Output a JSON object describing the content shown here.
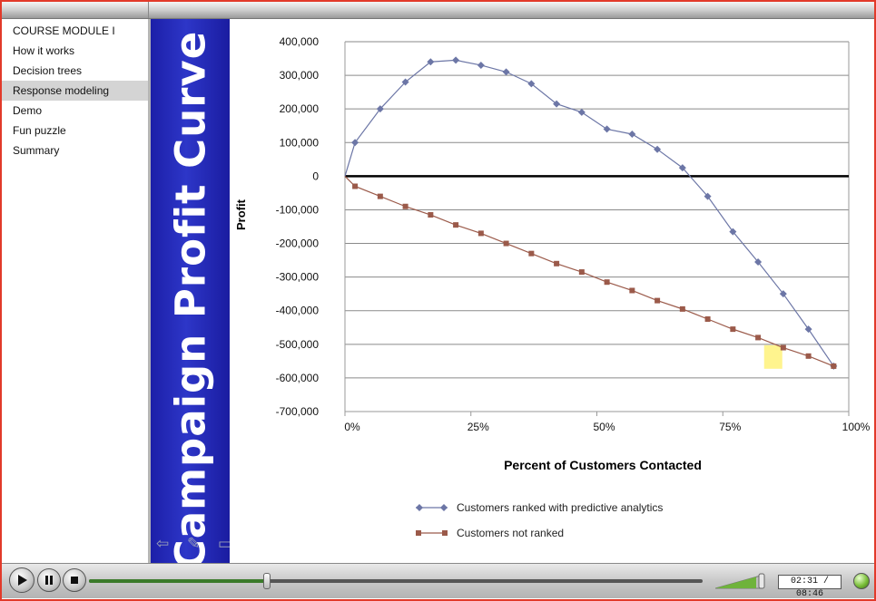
{
  "sidebar": {
    "items": [
      {
        "label": "COURSE MODULE I",
        "active": false
      },
      {
        "label": "How it works",
        "active": false
      },
      {
        "label": "Decision trees",
        "active": false
      },
      {
        "label": "Response modeling",
        "active": true
      },
      {
        "label": "Demo",
        "active": false
      },
      {
        "label": "Fun puzzle",
        "active": false
      },
      {
        "label": "Summary",
        "active": false
      }
    ]
  },
  "banner": {
    "title": "Campaign Profit Curve"
  },
  "slide_nav_icons": [
    "back-arrow-icon",
    "pencil-icon",
    "screen-icon",
    "forward-arrow-icon"
  ],
  "player": {
    "time_display": "02:31 / 08:46",
    "progress_fraction": 0.29,
    "volume_fraction": 0.9
  },
  "colors": {
    "banner_blue": "#2a2fc0",
    "series_ranked": "#6c76a6",
    "series_unranked": "#9b5a4a",
    "frame_red": "#e23a2a",
    "highlight": "#fff27a"
  },
  "chart_data": {
    "type": "line",
    "xlabel": "Percent of Customers Contacted",
    "ylabel": "Profit",
    "xlim": [
      0,
      100
    ],
    "ylim": [
      -700000,
      400000
    ],
    "x_tick_labels": [
      "0%",
      "25%",
      "50%",
      "75%",
      "100%"
    ],
    "y_tick_labels": [
      "400,000",
      "300,000",
      "200,000",
      "100,000",
      "0",
      "-100,000",
      "-200,000",
      "-300,000",
      "-400,000",
      "-500,000",
      "-600,000",
      "-700,000"
    ],
    "grid": true,
    "legend_position": "bottom",
    "highlight_marker": {
      "x": 85,
      "y": -535000
    },
    "series": [
      {
        "name": "Customers ranked with predictive analytics",
        "marker": "diamond",
        "x": [
          2,
          7,
          12,
          17,
          22,
          27,
          32,
          37,
          42,
          47,
          52,
          57,
          62,
          67,
          72,
          77,
          82,
          87,
          92,
          97
        ],
        "values": [
          100000,
          200000,
          280000,
          340000,
          345000,
          330000,
          310000,
          275000,
          215000,
          190000,
          140000,
          125000,
          80000,
          25000,
          -60000,
          -165000,
          -255000,
          -350000,
          -455000,
          -565000
        ]
      },
      {
        "name": "Customers not ranked",
        "marker": "square",
        "x": [
          2,
          7,
          12,
          17,
          22,
          27,
          32,
          37,
          42,
          47,
          52,
          57,
          62,
          67,
          72,
          77,
          82,
          87,
          92,
          97
        ],
        "values": [
          -30000,
          -60000,
          -90000,
          -115000,
          -145000,
          -170000,
          -200000,
          -230000,
          -260000,
          -285000,
          -315000,
          -340000,
          -370000,
          -395000,
          -425000,
          -455000,
          -480000,
          -510000,
          -535000,
          -565000
        ]
      }
    ]
  }
}
